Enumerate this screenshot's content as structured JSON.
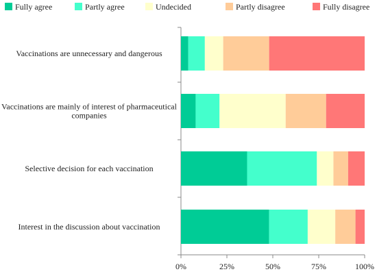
{
  "chart_data": {
    "type": "bar",
    "orientation": "horizontal",
    "stacked": true,
    "categories": [
      [
        "Vaccinations are  unnecessary and dangerous"
      ],
      [
        "Vaccinations are mainly of interest of pharmaceutical",
        "companies"
      ],
      [
        "Selective decision for each vaccination"
      ],
      [
        "Interest in the discussion about vaccination"
      ]
    ],
    "series": [
      {
        "name": "Fully agree",
        "color": "#00cc96",
        "values": [
          4,
          8,
          36,
          48
        ]
      },
      {
        "name": "Partly agree",
        "color": "#44ffcc",
        "values": [
          9,
          13,
          38,
          21
        ]
      },
      {
        "name": "Undecided",
        "color": "#ffffcc",
        "values": [
          10,
          36,
          9,
          15
        ]
      },
      {
        "name": "Partly disagree",
        "color": "#ffcc99",
        "values": [
          25,
          22,
          8,
          11
        ]
      },
      {
        "name": "Fully disagree",
        "color": "#ff7777",
        "values": [
          52,
          21,
          9,
          5
        ]
      }
    ],
    "xticks": [
      "0%",
      "25%",
      "50%",
      "75%",
      "100%"
    ],
    "xlim": [
      0,
      100
    ],
    "title": "",
    "xlabel": "",
    "ylabel": "",
    "grid": false,
    "legend_position": "top"
  }
}
